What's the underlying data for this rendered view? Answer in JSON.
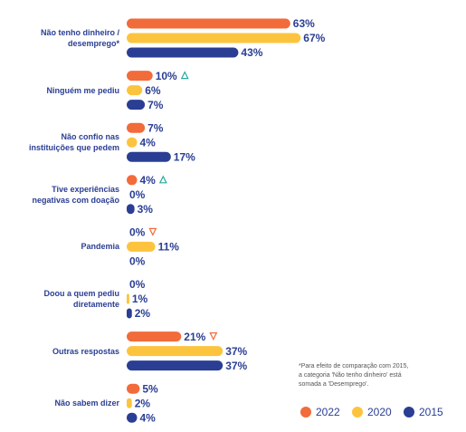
{
  "chart_data": {
    "type": "bar",
    "orientation": "horizontal",
    "categories": [
      "Não tenho dinheiro /\ndesemprego*",
      "Ninguém me pediu",
      "Não confio nas\ninstituições que pedem",
      "Tive experiências\nnegativas com doação",
      "Pandemia",
      "Doou a quem pediu\ndiretamente",
      "Outras respostas",
      "Não sabem dizer"
    ],
    "series": [
      {
        "name": "2022",
        "color": "#f26b3a",
        "values": [
          63,
          10,
          7,
          4,
          0,
          0,
          21,
          5
        ],
        "value_labels": [
          "63%",
          "10%",
          "7%",
          "4%",
          "0%",
          "0%",
          "21%",
          "5%"
        ]
      },
      {
        "name": "2020",
        "color": "#fcc43e",
        "values": [
          67,
          6,
          4,
          0,
          11,
          1,
          37,
          2
        ],
        "value_labels": [
          "67%",
          "6%",
          "4%",
          "0%",
          "11%",
          "1%",
          "37%",
          "2%"
        ]
      },
      {
        "name": "2015",
        "color": "#2a3e94",
        "values": [
          43,
          7,
          17,
          3,
          0,
          2,
          37,
          4
        ],
        "value_labels": [
          "43%",
          "7%",
          "17%",
          "3%",
          "0%",
          "2%",
          "37%",
          "4%"
        ]
      }
    ],
    "trend_markers": [
      null,
      "up",
      null,
      "up",
      "down",
      null,
      "down",
      null
    ],
    "trend_colors": {
      "up": "#2aa8a0",
      "down": "#f26b3a"
    },
    "legend_position": "lower right",
    "note": [
      "*Para efeito de comparação com 2015,",
      "a categoria 'Não tenho dinheiro' está",
      "somada a 'Desemprego'."
    ]
  }
}
